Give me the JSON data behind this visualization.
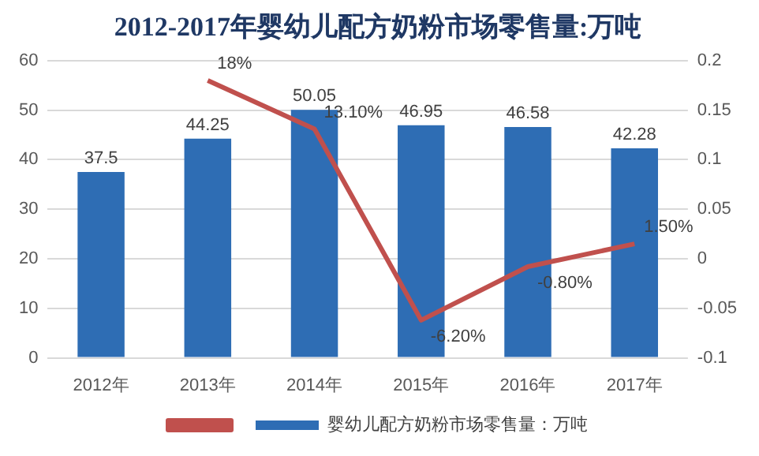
{
  "chart_data": {
    "type": "bar",
    "title": "2012-2017年婴幼儿配方奶粉市场零售量:万吨",
    "categories": [
      "2012年",
      "2013年",
      "2014年",
      "2015年",
      "2016年",
      "2017年"
    ],
    "series": [
      {
        "name": "婴幼儿配方奶粉市场零售量：万吨",
        "color": "#2e6db4",
        "values": [
          37.5,
          44.25,
          50.05,
          46.95,
          46.58,
          42.28
        ],
        "value_labels": [
          "37.5",
          "44.25",
          "50.05",
          "46.95",
          "46.58",
          "42.28"
        ]
      },
      {
        "type": "line",
        "axis": "y2",
        "color": "#c0504d",
        "values": [
          null,
          0.18,
          0.131,
          -0.062,
          -0.008,
          0.015
        ],
        "value_labels": [
          null,
          "18%",
          "13.10%",
          "-6.20%",
          "-0.80%",
          "1.50%"
        ]
      }
    ],
    "ylim": [
      0,
      60
    ],
    "yticks": [
      0,
      10,
      20,
      30,
      40,
      50,
      60
    ],
    "y2lim": [
      -0.1,
      0.2
    ],
    "y2ticks": [
      -0.1,
      -0.05,
      0,
      0.05,
      0.1,
      0.15,
      0.2
    ],
    "grid": "y",
    "legend": "bottom",
    "marker": "none"
  }
}
